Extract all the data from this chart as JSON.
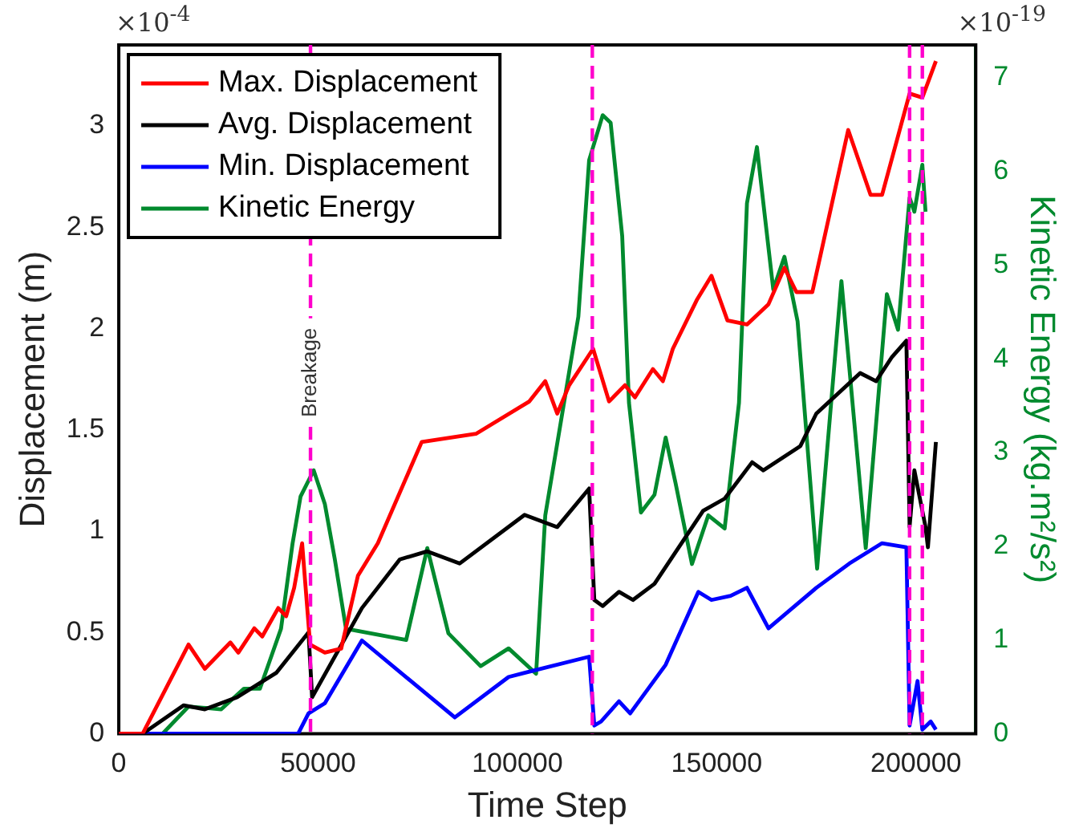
{
  "chart_data": {
    "type": "line",
    "xlabel": "Time Step",
    "ylabel": "Displacement (m)",
    "y2label": "Kinetic Energy (kg.m²/s²)",
    "xlim": [
      0,
      215000
    ],
    "xticks": [
      0,
      50000,
      100000,
      150000,
      200000
    ],
    "ylim": [
      0,
      3.4
    ],
    "yticks": [
      0,
      0.5,
      1,
      1.5,
      2,
      2.5,
      3
    ],
    "y2lim": [
      0,
      7.35
    ],
    "y2ticks": [
      0,
      1,
      2,
      3,
      4,
      5,
      6,
      7
    ],
    "grid": false,
    "legend": "top left",
    "marker": "none",
    "line_style": "solid",
    "series": [
      {
        "name": "Max. Displacement",
        "color": "#ff0000",
        "x": [
          0,
          6000,
          17500,
          21600,
          28000,
          30000,
          34000,
          36000,
          40000,
          42000,
          44000,
          46000,
          48000,
          51700,
          55800,
          60000,
          65000,
          76000,
          89600,
          103000,
          107000,
          110000,
          113000,
          119000,
          123000,
          127000,
          129500,
          134000,
          136500,
          139000,
          145000,
          148700,
          152700,
          157600,
          163000,
          167000,
          170000,
          174000,
          183000,
          188600,
          191500,
          198400,
          201600,
          205000
        ],
        "values": [
          0,
          0,
          0.44,
          0.32,
          0.45,
          0.4,
          0.52,
          0.48,
          0.62,
          0.58,
          0.72,
          0.94,
          0.44,
          0.4,
          0.42,
          0.78,
          0.94,
          1.44,
          1.48,
          1.64,
          1.74,
          1.58,
          1.72,
          1.9,
          1.64,
          1.72,
          1.66,
          1.8,
          1.74,
          1.9,
          2.14,
          2.26,
          2.04,
          2.02,
          2.12,
          2.3,
          2.18,
          2.18,
          2.98,
          2.66,
          2.66,
          3.16,
          3.14,
          3.32
        ]
      },
      {
        "name": "Avg. Displacement",
        "color": "#000000",
        "x": [
          0,
          6000,
          16300,
          21600,
          29700,
          39500,
          47600,
          48500,
          61000,
          70500,
          77400,
          85500,
          101800,
          110000,
          118000,
          119300,
          121400,
          125500,
          129000,
          134400,
          146600,
          152000,
          158900,
          161700,
          171000,
          175000,
          186000,
          190000,
          194000,
          197600,
          198400,
          199600,
          202400,
          203000,
          205000
        ],
        "values": [
          0,
          0,
          0.14,
          0.12,
          0.18,
          0.3,
          0.5,
          0.18,
          0.62,
          0.86,
          0.9,
          0.84,
          1.08,
          1.02,
          1.21,
          0.66,
          0.63,
          0.7,
          0.66,
          0.74,
          1.1,
          1.16,
          1.34,
          1.3,
          1.42,
          1.58,
          1.78,
          1.74,
          1.86,
          1.94,
          1.02,
          1.3,
          1.02,
          0.92,
          1.44
        ]
      },
      {
        "name": "Min. Displacement",
        "color": "#0000ff",
        "x": [
          0,
          45000,
          47600,
          51700,
          61000,
          84300,
          97800,
          101800,
          118000,
          119300,
          121000,
          125500,
          128300,
          137200,
          145400,
          148700,
          153500,
          157600,
          163000,
          175000,
          183300,
          191500,
          197600,
          198400,
          200400,
          201600,
          203700,
          205000
        ],
        "values": [
          0,
          0,
          0.1,
          0.15,
          0.46,
          0.08,
          0.28,
          0.3,
          0.38,
          0.04,
          0.06,
          0.16,
          0.1,
          0.34,
          0.7,
          0.66,
          0.68,
          0.72,
          0.52,
          0.72,
          0.84,
          0.94,
          0.92,
          0.04,
          0.26,
          0.02,
          0.06,
          0.02
        ]
      },
      {
        "name": "Kinetic Energy",
        "color": "#008a2e",
        "axis": "y2",
        "x": [
          11000,
          17500,
          25700,
          31400,
          35400,
          37900,
          40700,
          43600,
          45600,
          48900,
          51700,
          54200,
          57000,
          72100,
          77400,
          82700,
          90800,
          97800,
          104700,
          107000,
          115300,
          118000,
          121400,
          123400,
          126300,
          128000,
          131000,
          134400,
          137200,
          139700,
          143800,
          147900,
          152000,
          155600,
          157600,
          160100,
          164200,
          167000,
          170300,
          175200,
          181300,
          187400,
          192700,
          195500,
          198400,
          199600,
          201600,
          202400
        ],
        "values": [
          0,
          0.29,
          0.26,
          0.48,
          0.48,
          0.78,
          1.12,
          2.03,
          2.53,
          2.81,
          2.45,
          1.86,
          1.12,
          1.0,
          1.98,
          1.07,
          0.72,
          0.91,
          0.64,
          2.33,
          4.45,
          6.12,
          6.6,
          6.52,
          5.31,
          3.53,
          2.36,
          2.55,
          3.16,
          2.67,
          1.81,
          2.33,
          2.19,
          3.53,
          5.66,
          6.26,
          4.74,
          5.09,
          4.4,
          1.76,
          4.83,
          1.98,
          4.69,
          4.31,
          5.72,
          5.57,
          6.07,
          5.57
        ]
      }
    ],
    "ref_lines": [
      {
        "axis": "x",
        "value": 48100,
        "label": "Breakage",
        "color": "#ff00cc",
        "line_style": "dashed"
      },
      {
        "axis": "x",
        "value": 118800,
        "color": "#ff00cc",
        "line_style": "dashed"
      },
      {
        "axis": "x",
        "value": 198400,
        "color": "#ff00cc",
        "line_style": "dashed"
      },
      {
        "axis": "x",
        "value": 201600,
        "color": "#ff00cc",
        "line_style": "dashed"
      }
    ],
    "annotations": [
      "×10$^{-4}$",
      "×10$^{-19}$"
    ]
  }
}
